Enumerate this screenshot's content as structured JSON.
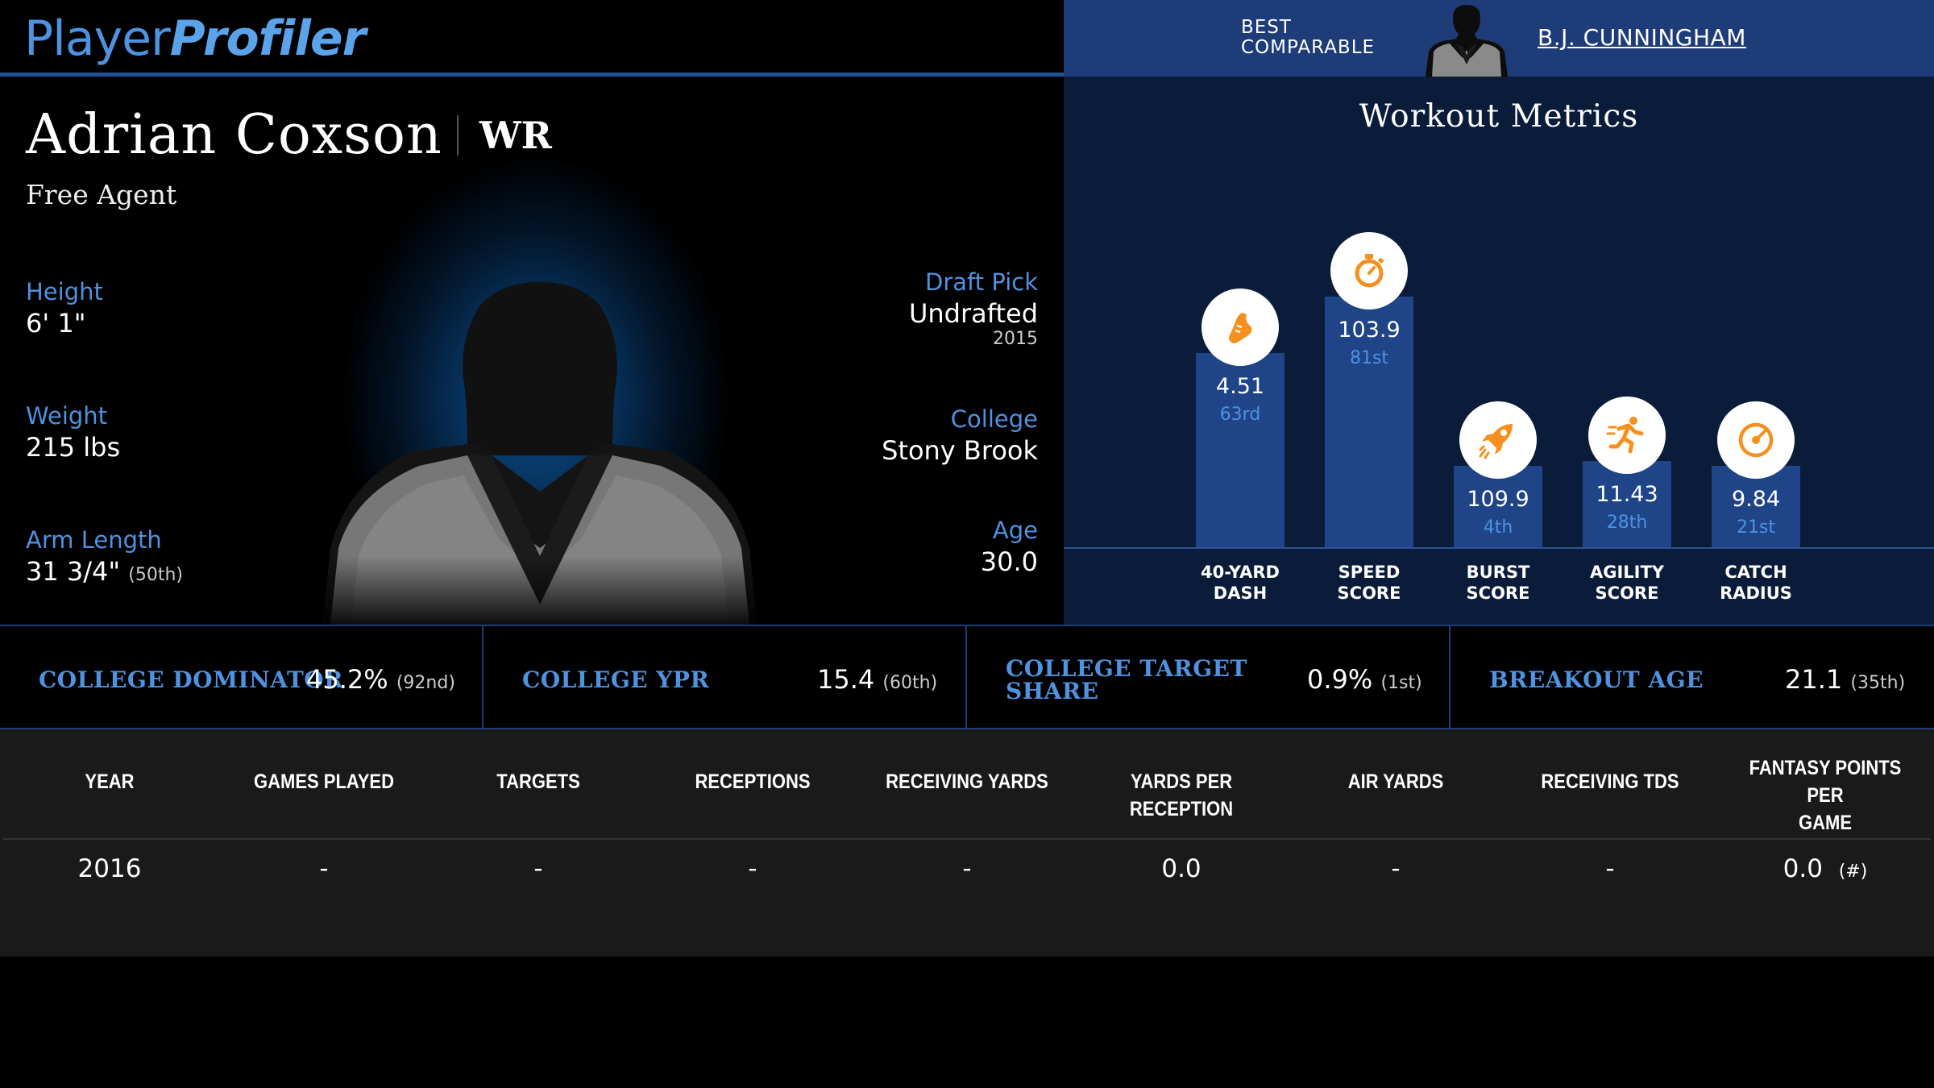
{
  "header": {
    "logo_word1": "Player",
    "logo_word2": "Profiler",
    "comparable_label_line1": "BEST",
    "comparable_label_line2": "COMPARABLE",
    "comparable_name": "B.J. CUNNINGHAM"
  },
  "player": {
    "name": "Adrian Coxson",
    "position": "WR",
    "team": "Free Agent",
    "height_label": "Height",
    "height": "6' 1\"",
    "weight_label": "Weight",
    "weight": "215 lbs",
    "arm_label": "Arm Length",
    "arm": "31 3/4\"",
    "arm_pct": "(50th)",
    "draft_label": "Draft Pick",
    "draft": "Undrafted",
    "draft_year": "2015",
    "college_label": "College",
    "college": "Stony Brook",
    "age_label": "Age",
    "age": "30.0"
  },
  "workout": {
    "title": "Workout Metrics",
    "metrics": [
      {
        "line1": "40-YARD",
        "line2": "DASH",
        "value": "4.51",
        "percentile": "63rd",
        "pct_num": 63,
        "icon": "shoe-icon"
      },
      {
        "line1": "SPEED",
        "line2": "SCORE",
        "value": "103.9",
        "percentile": "81st",
        "pct_num": 81,
        "icon": "stopwatch-icon"
      },
      {
        "line1": "BURST",
        "line2": "SCORE",
        "value": "109.9",
        "percentile": "4th",
        "pct_num": 4,
        "icon": "rocket-icon"
      },
      {
        "line1": "AGILITY",
        "line2": "SCORE",
        "value": "11.43",
        "percentile": "28th",
        "pct_num": 28,
        "icon": "runner-icon"
      },
      {
        "line1": "CATCH",
        "line2": "RADIUS",
        "value": "9.84",
        "percentile": "21st",
        "pct_num": 21,
        "icon": "target-icon"
      }
    ],
    "accent": "#f5901e"
  },
  "college_stats": [
    {
      "name": "COLLEGE DOMINATOR",
      "value": "45.2%",
      "pct": "(92nd)"
    },
    {
      "name": "COLLEGE YPR",
      "value": "15.4",
      "pct": "(60th)"
    },
    {
      "name_line1": "COLLEGE TARGET",
      "name_line2": "SHARE",
      "value": "0.9%",
      "pct": "(1st)"
    },
    {
      "name": "BREAKOUT AGE",
      "value": "21.1",
      "pct": "(35th)"
    }
  ],
  "table": {
    "headers": [
      "YEAR",
      "GAMES PLAYED",
      "TARGETS",
      "RECEPTIONS",
      "RECEIVING YARDS",
      "YARDS PER RECEPTION",
      "AIR YARDS",
      "RECEIVING TDS",
      "FANTASY POINTS PER",
      "GAME"
    ],
    "row": [
      "2016",
      "-",
      "-",
      "-",
      "-",
      "0.0",
      "-",
      "-",
      "0.0",
      "(#)"
    ]
  },
  "colors": {
    "brand_blue": "#4e92e0",
    "panel_navy": "#0a1c3a",
    "bar_blue": "#1f4488",
    "header_navy": "#1e3d78"
  }
}
